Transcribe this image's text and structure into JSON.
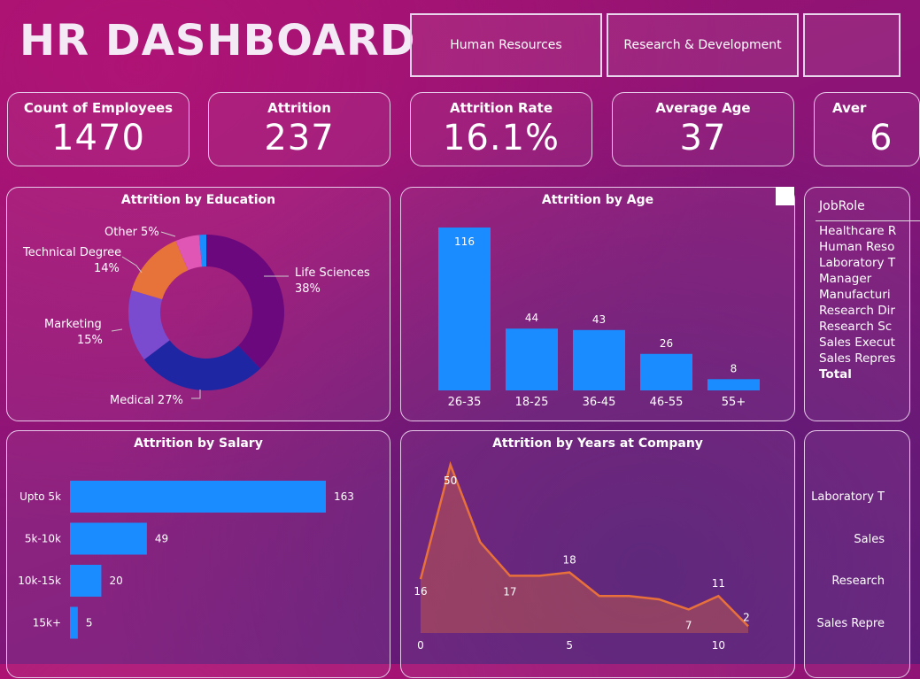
{
  "header": {
    "title": "HR DASHBOARD",
    "slicers": [
      "Human Resources",
      "Research & Development"
    ]
  },
  "kpis": [
    {
      "label": "Count of Employees",
      "value": "1470"
    },
    {
      "label": "Attrition",
      "value": "237"
    },
    {
      "label": "Attrition Rate",
      "value": "16.1%"
    },
    {
      "label": "Average Age",
      "value": "37"
    },
    {
      "label": "Aver",
      "value": "6"
    }
  ],
  "colors": {
    "bar": "#1a8cff",
    "line": "#e8703a",
    "donut": [
      "#6b087d",
      "#1f26a3",
      "#7a4bcf",
      "#e8733a",
      "#e056b5",
      "#1a8cff"
    ]
  },
  "chart_data": [
    {
      "type": "pie",
      "title": "Attrition by Education",
      "categories": [
        "Life Sciences",
        "Medical",
        "Marketing",
        "Technical Degree",
        "Other",
        ""
      ],
      "values": [
        38,
        27,
        15,
        14,
        5,
        0
      ],
      "labels": [
        "Life Sciences",
        "38%",
        "Medical 27%",
        "Marketing",
        "15%",
        "Technical Degree",
        "14%",
        "Other 5%"
      ]
    },
    {
      "type": "bar",
      "title": "Attrition by Age",
      "categories": [
        "26-35",
        "18-25",
        "36-45",
        "46-55",
        "55+"
      ],
      "values": [
        116,
        44,
        43,
        26,
        8
      ]
    },
    {
      "type": "bar",
      "title": "Attrition by Salary",
      "categories": [
        "Upto 5k",
        "5k-10k",
        "10k-15k",
        "15k+"
      ],
      "values": [
        163,
        49,
        20,
        5
      ]
    },
    {
      "type": "area",
      "title": "Attrition by Years at Company",
      "x": [
        0,
        1,
        2,
        3,
        4,
        5,
        6,
        7,
        8,
        9,
        10,
        11
      ],
      "values": [
        16,
        50,
        27,
        17,
        17,
        18,
        11,
        11,
        10,
        7,
        11,
        2
      ],
      "data_labels": [
        {
          "x": 0,
          "v": "16"
        },
        {
          "x": 1,
          "v": "50"
        },
        {
          "x": 3,
          "v": "17"
        },
        {
          "x": 5,
          "v": "18"
        },
        {
          "x": 9,
          "v": "7"
        },
        {
          "x": 10,
          "v": "11"
        },
        {
          "x": 11,
          "v": "2"
        }
      ],
      "x_ticks": [
        "0",
        "5",
        "10"
      ],
      "ylim": [
        0,
        50
      ]
    }
  ],
  "jobrole": {
    "header": "JobRole",
    "items": [
      "Healthcare R",
      "Human Reso",
      "Laboratory T",
      "Manager",
      "Manufacturi",
      "Research Dir",
      "Research Sc",
      "Sales Execut",
      "Sales Repres"
    ],
    "total": "Total"
  },
  "right_bottom": {
    "labels": [
      "Laboratory T",
      "Sales",
      "Research",
      "Sales Repre"
    ]
  }
}
